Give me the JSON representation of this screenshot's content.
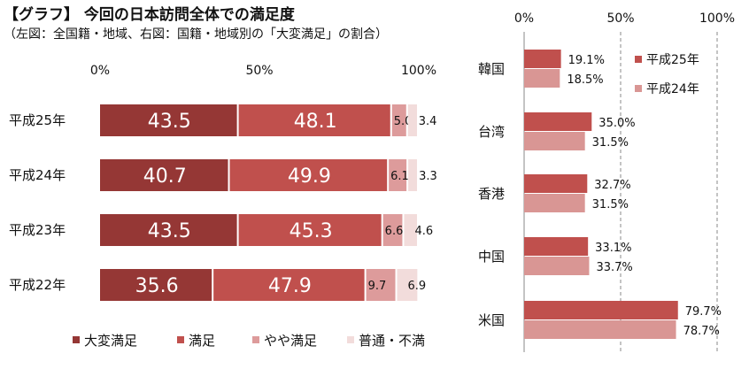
{
  "header": {
    "title": "【グラフ】 今回の日本訪問全体での満足度",
    "subtitle": "（左図：全国籍・地域、右図：国籍・地域別の「大変満足」の割合）"
  },
  "chart_data": [
    {
      "type": "bar",
      "orientation": "horizontal",
      "stacked": true,
      "categories": [
        "平成25年",
        "平成24年",
        "平成23年",
        "平成22年"
      ],
      "series": [
        {
          "name": "大変満足",
          "values": [
            43.5,
            40.7,
            43.5,
            35.6
          ],
          "color": "#953735"
        },
        {
          "name": "満足",
          "values": [
            48.1,
            49.9,
            45.3,
            47.9
          ],
          "color": "#c0504d"
        },
        {
          "name": "やや満足",
          "values": [
            5.0,
            6.1,
            6.6,
            9.7
          ],
          "color": "#dd9b9b"
        },
        {
          "name": "普通・不満",
          "values": [
            3.4,
            3.3,
            4.6,
            6.9
          ],
          "color": "#f2dcdb"
        }
      ],
      "xticks": [
        "0%",
        "50%",
        "100%"
      ],
      "xlim": [
        0,
        100
      ],
      "legend": "bottom",
      "grid": false
    },
    {
      "type": "bar",
      "orientation": "horizontal",
      "categories": [
        "韓国",
        "台湾",
        "香港",
        "中国",
        "米国"
      ],
      "series": [
        {
          "name": "平成25年",
          "values": [
            19.1,
            35.0,
            32.7,
            33.1,
            79.7
          ],
          "color": "#c0504d"
        },
        {
          "name": "平成24年",
          "values": [
            18.5,
            31.5,
            31.5,
            33.7,
            78.7
          ],
          "color": "#d99694"
        }
      ],
      "xticks": [
        "0%",
        "50%",
        "100%"
      ],
      "xlim": [
        0,
        100
      ],
      "legend": "top-right",
      "grid": true
    }
  ]
}
